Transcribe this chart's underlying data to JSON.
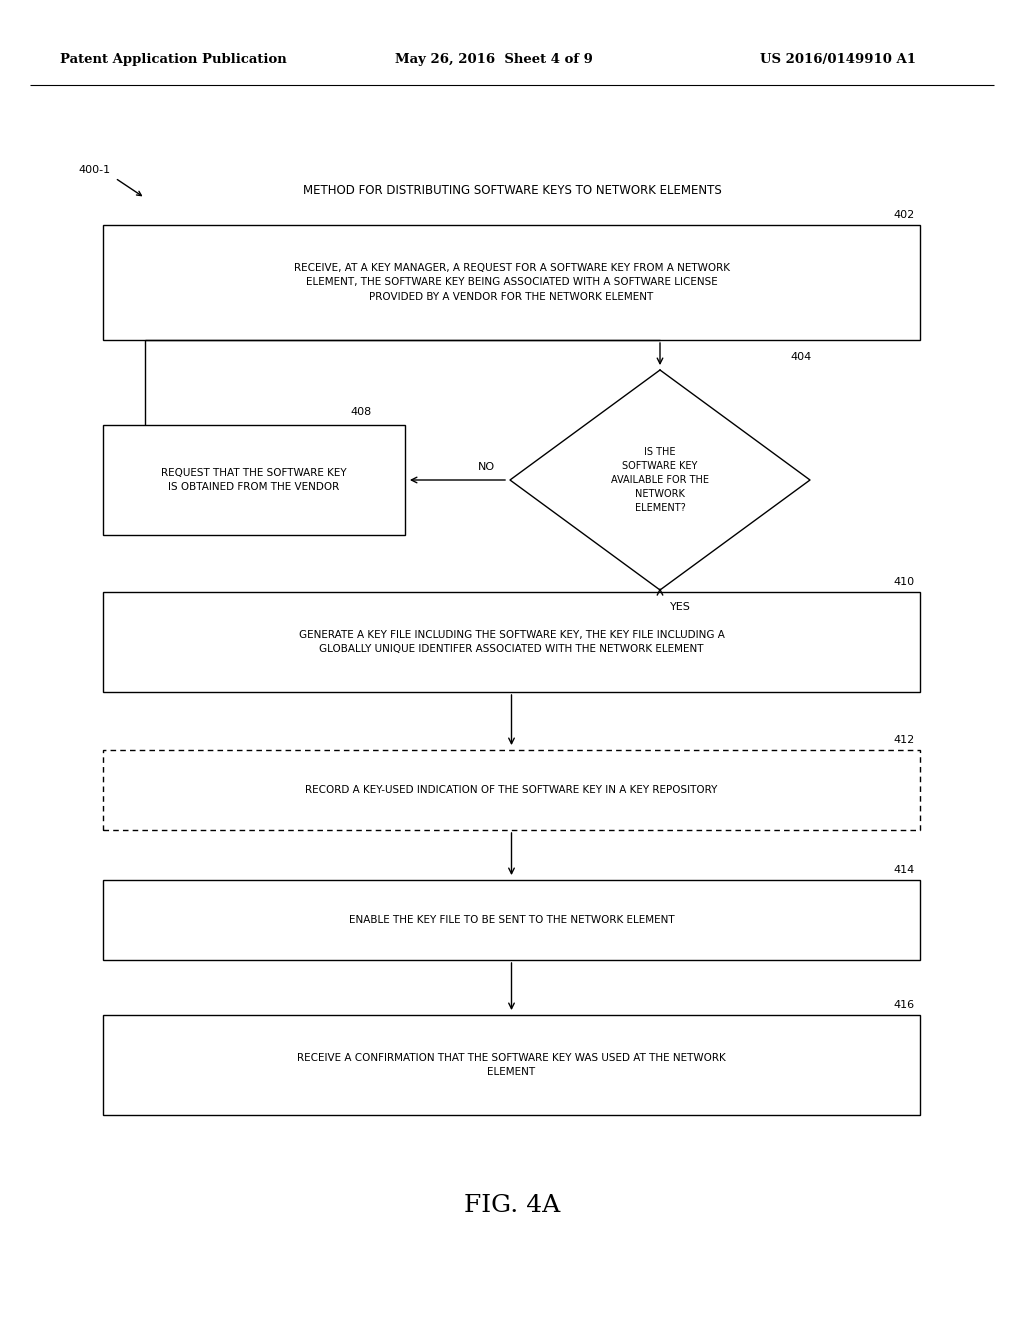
{
  "bg_color": "#ffffff",
  "header_left": "Patent Application Publication",
  "header_mid": "May 26, 2016  Sheet 4 of 9",
  "header_right": "US 2016/0149910 A1",
  "title_label": "400-1",
  "title_text": "METHOD FOR DISTRIBUTING SOFTWARE KEYS TO NETWORK ELEMENTS",
  "box402_label": "402",
  "box402_text": "RECEIVE, AT A KEY MANAGER, A REQUEST FOR A SOFTWARE KEY FROM A NETWORK\nELEMENT, THE SOFTWARE KEY BEING ASSOCIATED WITH A SOFTWARE LICENSE\nPROVIDED BY A VENDOR FOR THE NETWORK ELEMENT",
  "diamond404_label": "404",
  "diamond404_text": "IS THE\nSOFTWARE KEY\nAVAILABLE FOR THE\nNETWORK\nELEMENT?",
  "box408_label": "408",
  "box408_text": "REQUEST THAT THE SOFTWARE KEY\nIS OBTAINED FROM THE VENDOR",
  "no_label": "NO",
  "yes_label": "YES",
  "box410_label": "410",
  "box410_text": "GENERATE A KEY FILE INCLUDING THE SOFTWARE KEY, THE KEY FILE INCLUDING A\nGLOBALLY UNIQUE IDENTIFER ASSOCIATED WITH THE NETWORK ELEMENT",
  "box412_label": "412",
  "box412_text": "RECORD A KEY-USED INDICATION OF THE SOFTWARE KEY IN A KEY REPOSITORY",
  "box414_label": "414",
  "box414_text": "ENABLE THE KEY FILE TO BE SENT TO THE NETWORK ELEMENT",
  "box416_label": "416",
  "box416_text": "RECEIVE A CONFIRMATION THAT THE SOFTWARE KEY WAS USED AT THE NETWORK\nELEMENT",
  "fig_caption": "FIG. 4A",
  "line_color": "#000000",
  "text_color": "#000000",
  "box_fill": "#ffffff",
  "box_edge": "#000000",
  "fontsize_header": 9.5,
  "fontsize_body": 7.5,
  "fontsize_label": 8.0,
  "fontsize_caption": 18
}
